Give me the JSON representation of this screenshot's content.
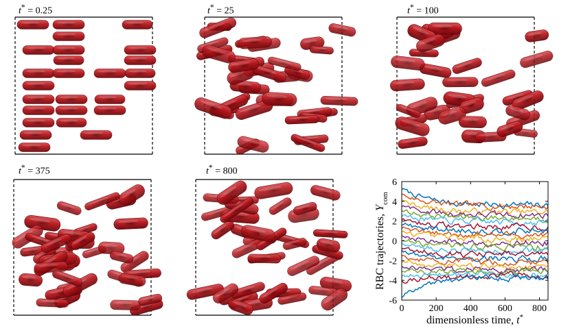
{
  "panels": [
    {
      "time_var": "t",
      "sup": "*",
      "eq": " = ",
      "value": "0.25"
    },
    {
      "time_var": "t",
      "sup": "*",
      "eq": " = ",
      "value": "25"
    },
    {
      "time_var": "t",
      "sup": "*",
      "eq": " = ",
      "value": "100"
    },
    {
      "time_var": "t",
      "sup": "*",
      "eq": " = ",
      "value": "375"
    },
    {
      "time_var": "t",
      "sup": "*",
      "eq": " = ",
      "value": "800"
    }
  ],
  "colors": {
    "cell_fill": "#b0161c",
    "cell_core": "#7a0a0e",
    "cell_edge": "#5c0508",
    "box_line": "#000000"
  },
  "chart_data": {
    "type": "line",
    "xlabel_text": "dimensionless time, ",
    "xlabel_var": "t",
    "xlabel_sup": "*",
    "ylabel_text": "RBC trajectories, ",
    "ylabel_var": "Y",
    "ylabel_sub": "com",
    "xlim": [
      0,
      850
    ],
    "ylim": [
      -6,
      6
    ],
    "xticks": [
      "0",
      "200",
      "400",
      "600",
      "800"
    ],
    "yticks": [
      "-6",
      "-4",
      "-2",
      "0",
      "2",
      "4",
      "6"
    ],
    "x_end": 850,
    "series_colors": [
      "#0072bd",
      "#d95319",
      "#edb120",
      "#7e2f8e",
      "#77ac30",
      "#4dbeee",
      "#a2142f"
    ],
    "series_trends": [
      {
        "start": 5.3,
        "end": 3.6
      },
      {
        "start": 4.7,
        "end": 3.5
      },
      {
        "start": 4.1,
        "end": 2.9
      },
      {
        "start": 3.6,
        "end": 2.6
      },
      {
        "start": 3.1,
        "end": 2.3
      },
      {
        "start": 2.6,
        "end": 1.9
      },
      {
        "start": 2.2,
        "end": 1.4
      },
      {
        "start": 1.7,
        "end": 1.0
      },
      {
        "start": 1.3,
        "end": 0.6
      },
      {
        "start": 0.9,
        "end": 0.2
      },
      {
        "start": 0.5,
        "end": -0.2
      },
      {
        "start": 0.1,
        "end": -0.6
      },
      {
        "start": -0.3,
        "end": -1.0
      },
      {
        "start": -0.7,
        "end": -1.4
      },
      {
        "start": -1.1,
        "end": -1.8
      },
      {
        "start": -1.6,
        "end": -2.2
      },
      {
        "start": -2.0,
        "end": -2.6
      },
      {
        "start": -2.6,
        "end": -2.9
      },
      {
        "start": -3.1,
        "end": -3.1
      },
      {
        "start": -3.6,
        "end": -3.4
      },
      {
        "start": -4.2,
        "end": -3.5
      },
      {
        "start": -5.6,
        "end": -3.7
      }
    ]
  }
}
